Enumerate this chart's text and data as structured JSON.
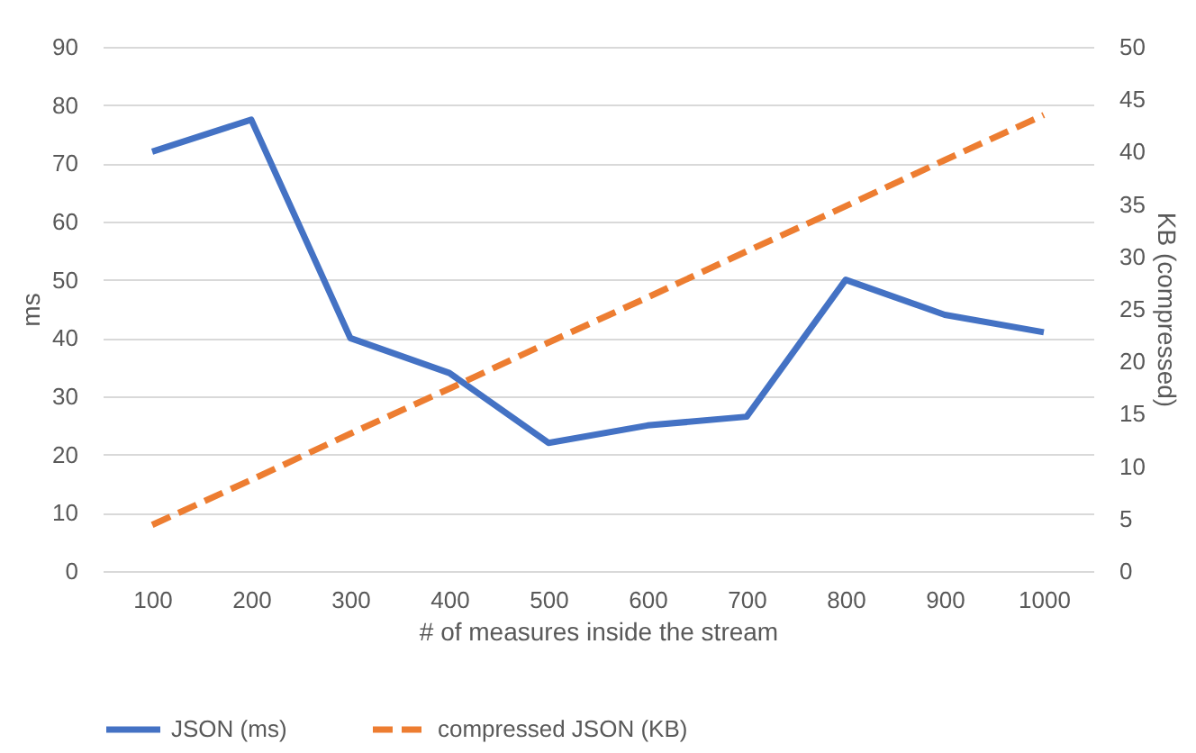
{
  "chart_data": {
    "type": "line",
    "xlabel": "# of measures inside the stream",
    "ylabel": "ms",
    "y2label": "KB (compressed)",
    "categories": [
      "100",
      "200",
      "300",
      "400",
      "500",
      "600",
      "700",
      "800",
      "900",
      "1000"
    ],
    "series": [
      {
        "name": "JSON (ms)",
        "color": "#4472c4",
        "line_style": "solid",
        "values": [
          72,
          77.5,
          40,
          34,
          22,
          25,
          26.5,
          50,
          44,
          41
        ]
      },
      {
        "name": "compressed JSON (KB)",
        "color": "#ed7d31",
        "line_style": "dashed",
        "axis": "y2",
        "values": [
          4.4,
          8.7,
          13.1,
          17.4,
          21.8,
          26.1,
          30.5,
          34.8,
          39.2,
          43.5
        ]
      }
    ],
    "ylim": [
      0,
      90
    ],
    "yticks": [
      0,
      10,
      20,
      30,
      40,
      50,
      60,
      70,
      80,
      90
    ],
    "y2lim": [
      0,
      50
    ],
    "y2ticks": [
      0,
      5,
      10,
      15,
      20,
      25,
      30,
      35,
      40,
      45,
      50
    ],
    "grid": "y",
    "legend": "bottom"
  }
}
